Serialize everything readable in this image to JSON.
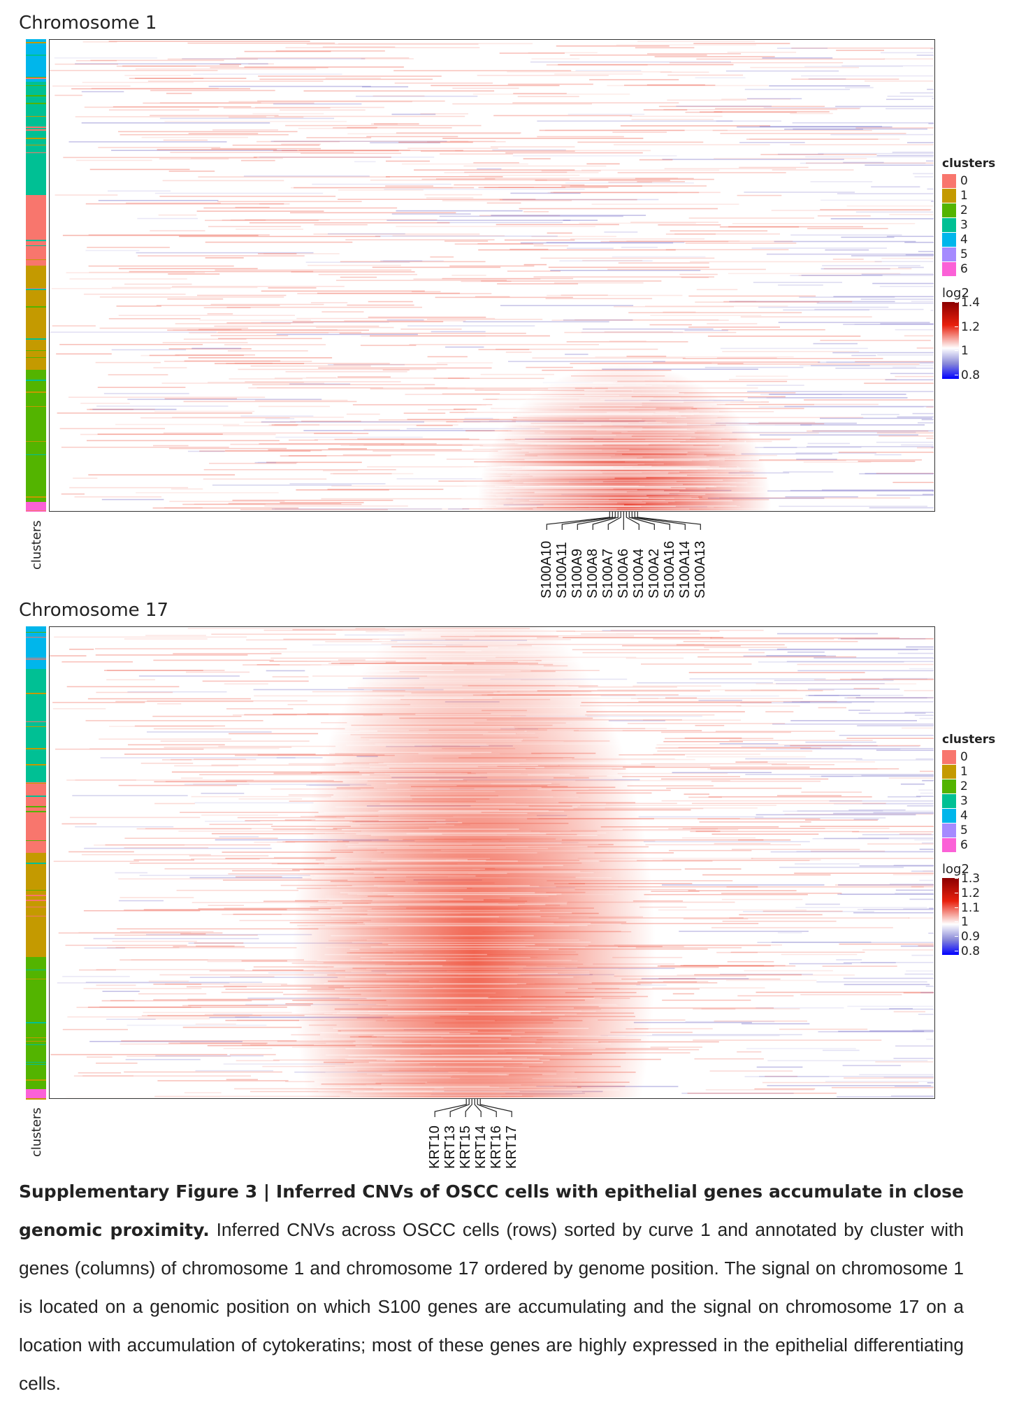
{
  "panels": [
    {
      "title": "Chromosome 1",
      "cluster_axis_label": "clusters",
      "genes": [
        "S100A10",
        "S100A11",
        "S100A9",
        "S100A8",
        "S100A7",
        "S100A6",
        "S100A4",
        "S100A2",
        "S100A16",
        "S100A14",
        "S100A13"
      ],
      "legend": {
        "clusters_title": "clusters",
        "clusters": [
          {
            "label": "0",
            "color": "#F8766D"
          },
          {
            "label": "1",
            "color": "#C49A00"
          },
          {
            "label": "2",
            "color": "#53B400"
          },
          {
            "label": "3",
            "color": "#00C094"
          },
          {
            "label": "4",
            "color": "#00B6EB"
          },
          {
            "label": "5",
            "color": "#A58AFF"
          },
          {
            "label": "6",
            "color": "#FB61D7"
          }
        ],
        "scale_title": "log2",
        "scale_ticks": [
          "1.4",
          "1.2",
          "1",
          "0.8"
        ]
      },
      "cluster_segments": [
        {
          "cluster": "4",
          "fraction": 0.09
        },
        {
          "cluster": "3",
          "fraction": 0.24
        },
        {
          "cluster": "0",
          "fraction": 0.15
        },
        {
          "cluster": "1",
          "fraction": 0.22
        },
        {
          "cluster": "2",
          "fraction": 0.28
        },
        {
          "cluster": "6",
          "fraction": 0.02
        }
      ],
      "hotspot": {
        "center_x_fraction": 0.65,
        "row_start_fraction": 0.72,
        "color": "#E83A2A"
      }
    },
    {
      "title": "Chromosome 17",
      "cluster_axis_label": "clusters",
      "genes": [
        "KRT10",
        "KRT13",
        "KRT15",
        "KRT14",
        "KRT16",
        "KRT17"
      ],
      "legend": {
        "clusters_title": "clusters",
        "clusters": [
          {
            "label": "0",
            "color": "#F8766D"
          },
          {
            "label": "1",
            "color": "#C49A00"
          },
          {
            "label": "2",
            "color": "#53B400"
          },
          {
            "label": "3",
            "color": "#00C094"
          },
          {
            "label": "4",
            "color": "#00B6EB"
          },
          {
            "label": "5",
            "color": "#A58AFF"
          },
          {
            "label": "6",
            "color": "#FB61D7"
          }
        ],
        "scale_title": "log2",
        "scale_ticks": [
          "1.3",
          "1.2",
          "1.1",
          "1",
          "0.9",
          "0.8"
        ]
      },
      "cluster_segments": [
        {
          "cluster": "4",
          "fraction": 0.09
        },
        {
          "cluster": "3",
          "fraction": 0.24
        },
        {
          "cluster": "0",
          "fraction": 0.15
        },
        {
          "cluster": "1",
          "fraction": 0.22
        },
        {
          "cluster": "2",
          "fraction": 0.28
        },
        {
          "cluster": "6",
          "fraction": 0.02
        }
      ],
      "hotspot": {
        "center_x_fraction": 0.48,
        "row_start_fraction": 0.0,
        "color": "#F05A45"
      }
    }
  ],
  "caption": {
    "title": "Supplementary Figure 3 | Inferred CNVs of OSCC cells with epithelial genes accumulate in close genomic proximity.",
    "text": "Inferred CNVs across OSCC cells (rows) sorted by curve 1 and annotated by cluster with genes (columns) of chromosome 1 and chromosome 17 ordered by genome position. The signal on chromosome 1 is located on a genomic position on which S100 genes are accumulating and the signal on chromosome 17 on a location with accumulation of cytokeratins; most of these genes are highly expressed in the epithelial differentiating cells."
  }
}
